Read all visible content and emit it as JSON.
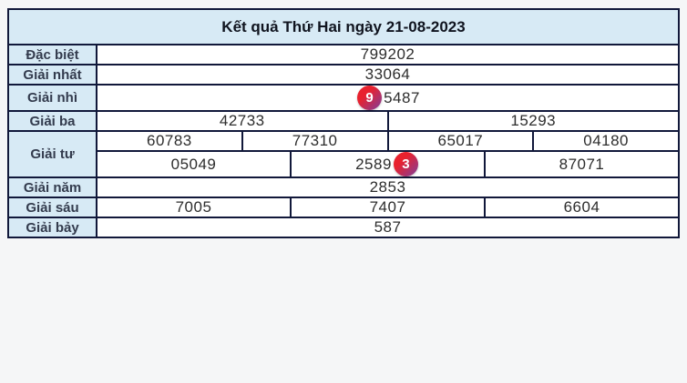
{
  "title": "Kết quả Thứ Hai ngày 21-08-2023",
  "colors": {
    "page_bg": "#f5f6f7",
    "header_bg": "#d7eaf5",
    "cell_bg": "#ffffff",
    "border": "#11183a",
    "label_text": "#333b4d",
    "title_text": "#10141f",
    "value_text": "#2d2d2d",
    "badge_text": "#ffffff",
    "badge_gradient_start": "#e8212e",
    "badge_gradient_end": "#7e3f9d"
  },
  "table": {
    "rows": [
      {
        "label": "Đặc biệt",
        "lines": [
          [
            {
              "pre": "799202"
            }
          ]
        ]
      },
      {
        "label": "Giải nhất",
        "lines": [
          [
            {
              "pre": "33064"
            }
          ]
        ]
      },
      {
        "label": "Giải nhì",
        "lines": [
          [
            {
              "badge": "9",
              "post": "5487"
            }
          ]
        ]
      },
      {
        "label": "Giải ba",
        "lines": [
          [
            {
              "pre": "42733"
            },
            {
              "pre": "15293"
            }
          ]
        ]
      },
      {
        "label": "Giải tư",
        "lines": [
          [
            {
              "pre": "60783"
            },
            {
              "pre": "77310"
            },
            {
              "pre": "65017"
            },
            {
              "pre": "04180"
            }
          ],
          [
            {
              "pre": "05049"
            },
            {
              "pre": "2589",
              "badge": "3"
            },
            {
              "pre": "87071"
            }
          ]
        ]
      },
      {
        "label": "Giải năm",
        "lines": [
          [
            {
              "pre": "2853"
            }
          ]
        ]
      },
      {
        "label": "Giải sáu",
        "lines": [
          [
            {
              "pre": "7005"
            },
            {
              "pre": "7407"
            },
            {
              "pre": "6604"
            }
          ]
        ]
      },
      {
        "label": "Giải bảy",
        "lines": [
          [
            {
              "pre": "587"
            }
          ]
        ]
      }
    ]
  }
}
